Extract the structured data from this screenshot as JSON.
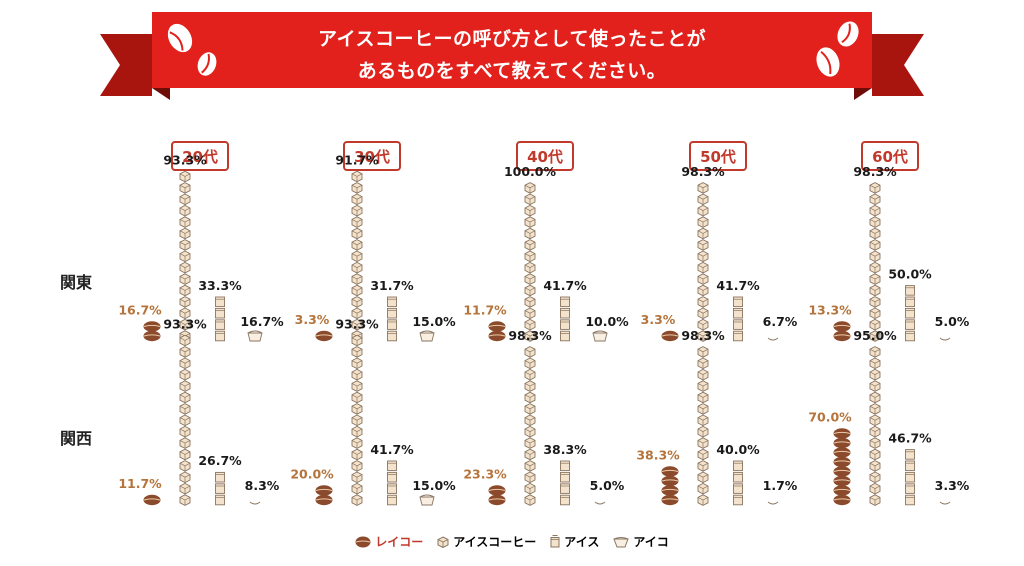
{
  "title": {
    "line1": "アイスコーヒーの呼び方として使ったことが",
    "line2": "あるものをすべて教えてください。"
  },
  "colors": {
    "banner": "#e3211c",
    "banner_dark": "#a8150f",
    "accent": "#c0392b",
    "bean": "#8b4a2b",
    "bean_label": "#b5743b",
    "box_fill": "#f3e2cc",
    "box_stroke": "#8a7560",
    "cup_fill": "#f8efe2"
  },
  "icons": [
    "coffee-bean-icon",
    "coffee-bean-icon",
    "coffee-bean-icon",
    "coffee-bean-icon"
  ],
  "chart_data": {
    "type": "pictograph",
    "categories": [
      "20代",
      "30代",
      "40代",
      "50代",
      "60代"
    ],
    "regions": [
      "関東",
      "関西"
    ],
    "series": [
      {
        "name": "レイコー",
        "icon": "coffee-bean-icon"
      },
      {
        "name": "アイスコーヒー",
        "icon": "coffee-cube-icon"
      },
      {
        "name": "アイス",
        "icon": "ice-bag-icon"
      },
      {
        "name": "アイコ",
        "icon": "coffee-cup-icon"
      }
    ],
    "unit": "%",
    "values": {
      "関東": [
        [
          16.7,
          93.3,
          33.3,
          16.7
        ],
        [
          3.3,
          91.7,
          31.7,
          15.0
        ],
        [
          11.7,
          100.0,
          41.7,
          10.0
        ],
        [
          3.3,
          98.3,
          41.7,
          6.7
        ],
        [
          13.3,
          98.3,
          50.0,
          5.0
        ]
      ],
      "関西": [
        [
          11.7,
          93.3,
          26.7,
          8.3
        ],
        [
          20.0,
          93.3,
          41.7,
          15.0
        ],
        [
          23.3,
          98.3,
          38.3,
          5.0
        ],
        [
          38.3,
          98.3,
          40.0,
          1.7
        ],
        [
          70.0,
          95.0,
          46.7,
          3.3
        ]
      ]
    },
    "labels": {
      "関東": [
        [
          "16.7%",
          "93.3%",
          "33.3%",
          "16.7%"
        ],
        [
          "3.3%",
          "91.7%",
          "31.7%",
          "15.0%"
        ],
        [
          "11.7%",
          "100.0%",
          "41.7%",
          "10.0%"
        ],
        [
          "3.3%",
          "98.3%",
          "41.7%",
          "6.7%"
        ],
        [
          "13.3%",
          "98.3%",
          "50.0%",
          "5.0%"
        ]
      ],
      "関西": [
        [
          "11.7%",
          "93.3%",
          "26.7%",
          "8.3%"
        ],
        [
          "20.0%",
          "93.3%",
          "41.7%",
          "15.0%"
        ],
        [
          "23.3%",
          "98.3%",
          "38.3%",
          "5.0%"
        ],
        [
          "38.3%",
          "98.3%",
          "40.0%",
          "1.7%"
        ],
        [
          "70.0%",
          "95.0%",
          "46.7%",
          "3.3%"
        ]
      ]
    },
    "legend": [
      "レイコー",
      "アイスコーヒー",
      "アイス",
      "アイコ"
    ]
  }
}
